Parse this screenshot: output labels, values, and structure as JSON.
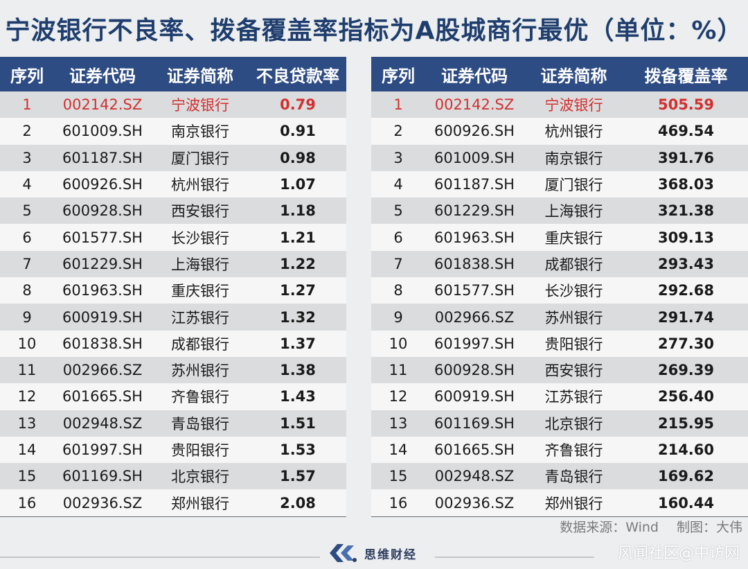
{
  "title": "宁波银行不良率、拨备覆盖率指标为A股城商行最优（单位：%）",
  "npl_table": {
    "headers": [
      "序列",
      "证券代码",
      "证券简称",
      "不良贷款率"
    ],
    "rows": [
      {
        "rank": "1",
        "code": "002142.SZ",
        "name": "宁波银行",
        "value": "0.79"
      },
      {
        "rank": "2",
        "code": "601009.SH",
        "name": "南京银行",
        "value": "0.91"
      },
      {
        "rank": "3",
        "code": "601187.SH",
        "name": "厦门银行",
        "value": "0.98"
      },
      {
        "rank": "4",
        "code": "600926.SH",
        "name": "杭州银行",
        "value": "1.07"
      },
      {
        "rank": "5",
        "code": "600928.SH",
        "name": "西安银行",
        "value": "1.18"
      },
      {
        "rank": "6",
        "code": "601577.SH",
        "name": "长沙银行",
        "value": "1.21"
      },
      {
        "rank": "7",
        "code": "601229.SH",
        "name": "上海银行",
        "value": "1.22"
      },
      {
        "rank": "8",
        "code": "601963.SH",
        "name": "重庆银行",
        "value": "1.27"
      },
      {
        "rank": "9",
        "code": "600919.SH",
        "name": "江苏银行",
        "value": "1.32"
      },
      {
        "rank": "10",
        "code": "601838.SH",
        "name": "成都银行",
        "value": "1.37"
      },
      {
        "rank": "11",
        "code": "002966.SZ",
        "name": "苏州银行",
        "value": "1.38"
      },
      {
        "rank": "12",
        "code": "601665.SH",
        "name": "齐鲁银行",
        "value": "1.43"
      },
      {
        "rank": "13",
        "code": "002948.SZ",
        "name": "青岛银行",
        "value": "1.51"
      },
      {
        "rank": "14",
        "code": "601997.SH",
        "name": "贵阳银行",
        "value": "1.53"
      },
      {
        "rank": "15",
        "code": "601169.SH",
        "name": "北京银行",
        "value": "1.57"
      },
      {
        "rank": "16",
        "code": "002936.SZ",
        "name": "郑州银行",
        "value": "2.08"
      }
    ]
  },
  "coverage_table": {
    "headers": [
      "序列",
      "证券代码",
      "证券简称",
      "拨备覆盖率"
    ],
    "rows": [
      {
        "rank": "1",
        "code": "002142.SZ",
        "name": "宁波银行",
        "value": "505.59"
      },
      {
        "rank": "2",
        "code": "600926.SH",
        "name": "杭州银行",
        "value": "469.54"
      },
      {
        "rank": "3",
        "code": "601009.SH",
        "name": "南京银行",
        "value": "391.76"
      },
      {
        "rank": "4",
        "code": "601187.SH",
        "name": "厦门银行",
        "value": "368.03"
      },
      {
        "rank": "5",
        "code": "601229.SH",
        "name": "上海银行",
        "value": "321.38"
      },
      {
        "rank": "6",
        "code": "601963.SH",
        "name": "重庆银行",
        "value": "309.13"
      },
      {
        "rank": "7",
        "code": "601838.SH",
        "name": "成都银行",
        "value": "293.43"
      },
      {
        "rank": "8",
        "code": "601577.SH",
        "name": "长沙银行",
        "value": "292.68"
      },
      {
        "rank": "9",
        "code": "002966.SZ",
        "name": "苏州银行",
        "value": "291.74"
      },
      {
        "rank": "10",
        "code": "601997.SH",
        "name": "贵阳银行",
        "value": "277.30"
      },
      {
        "rank": "11",
        "code": "600928.SH",
        "name": "西安银行",
        "value": "269.39"
      },
      {
        "rank": "12",
        "code": "600919.SH",
        "name": "江苏银行",
        "value": "256.40"
      },
      {
        "rank": "13",
        "code": "601169.SH",
        "name": "北京银行",
        "value": "215.95"
      },
      {
        "rank": "14",
        "code": "601665.SH",
        "name": "齐鲁银行",
        "value": "214.60"
      },
      {
        "rank": "15",
        "code": "002948.SZ",
        "name": "青岛银行",
        "value": "169.62"
      },
      {
        "rank": "16",
        "code": "002936.SZ",
        "name": "郑州银行",
        "value": "160.44"
      }
    ]
  },
  "highlight_color": "#d32f2f",
  "header_color": "#2e4c84",
  "source": "数据来源：Wind",
  "author": "制图：大伟",
  "brand": "思维财经",
  "watermark": "风闻社区@中访网"
}
